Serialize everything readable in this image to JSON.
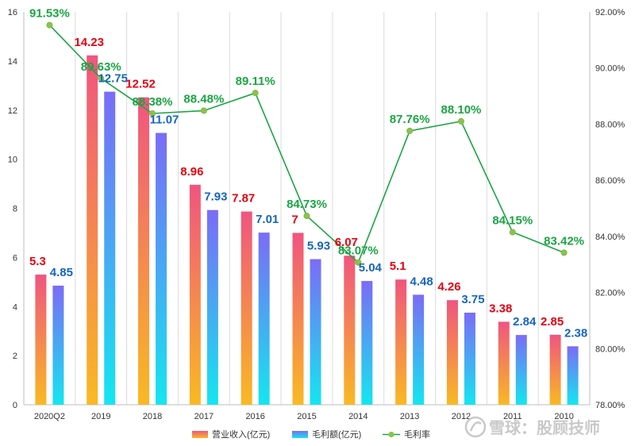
{
  "chart_data": {
    "type": "bar",
    "categories": [
      "2020Q2",
      "2019",
      "2018",
      "2017",
      "2016",
      "2015",
      "2014",
      "2013",
      "2012",
      "2011",
      "2010"
    ],
    "series": [
      {
        "name": "营业收入(亿元)",
        "kind": "bar",
        "axis": "left",
        "values": [
          5.3,
          14.23,
          12.52,
          8.96,
          7.87,
          7,
          6.07,
          5.1,
          4.26,
          3.38,
          2.85
        ],
        "labels": [
          "5.3",
          "14.23",
          "12.52",
          "8.96",
          "7.87",
          "7",
          "6.07",
          "5.1",
          "4.26",
          "3.38",
          "2.85"
        ],
        "gradient": [
          "#f0557f",
          "#f9b923"
        ],
        "label_color": "#e60012"
      },
      {
        "name": "毛利额(亿元)",
        "kind": "bar",
        "axis": "left",
        "values": [
          4.85,
          12.75,
          11.07,
          7.93,
          7.01,
          5.93,
          5.04,
          4.48,
          3.75,
          2.84,
          2.38
        ],
        "labels": [
          "4.85",
          "12.75",
          "11.07",
          "7.93",
          "7.01",
          "5.93",
          "5.04",
          "4.48",
          "3.75",
          "2.84",
          "2.38"
        ],
        "gradient": [
          "#7b6cf6",
          "#14e6f0"
        ],
        "label_color": "#1565c0"
      },
      {
        "name": "毛利率",
        "kind": "line",
        "axis": "right",
        "values": [
          91.53,
          89.63,
          88.38,
          88.48,
          89.11,
          84.73,
          83.07,
          87.76,
          88.1,
          84.15,
          83.42
        ],
        "labels": [
          "91.53%",
          "89.63%",
          "88.38%",
          "88.48%",
          "89.11%",
          "84.73%",
          "83.07%",
          "87.76%",
          "88.10%",
          "84.15%",
          "83.42%"
        ],
        "line_color": "#1aa543",
        "marker_color": "#8bc34a",
        "label_color": "#1aa543"
      }
    ],
    "y_left": {
      "min": 0,
      "max": 16,
      "step": 2,
      "ticks": [
        "0",
        "2",
        "4",
        "6",
        "8",
        "10",
        "12",
        "14",
        "16"
      ]
    },
    "y_right": {
      "min": 78,
      "max": 92,
      "step": 2,
      "ticks": [
        "78.00%",
        "80.00%",
        "82.00%",
        "84.00%",
        "86.00%",
        "88.00%",
        "90.00%",
        "92.00%"
      ]
    },
    "grid": "vertical",
    "legend_position": "bottom-center"
  },
  "watermark": {
    "text": "雪球：股顾技师",
    "color": "#c9c9c9"
  }
}
